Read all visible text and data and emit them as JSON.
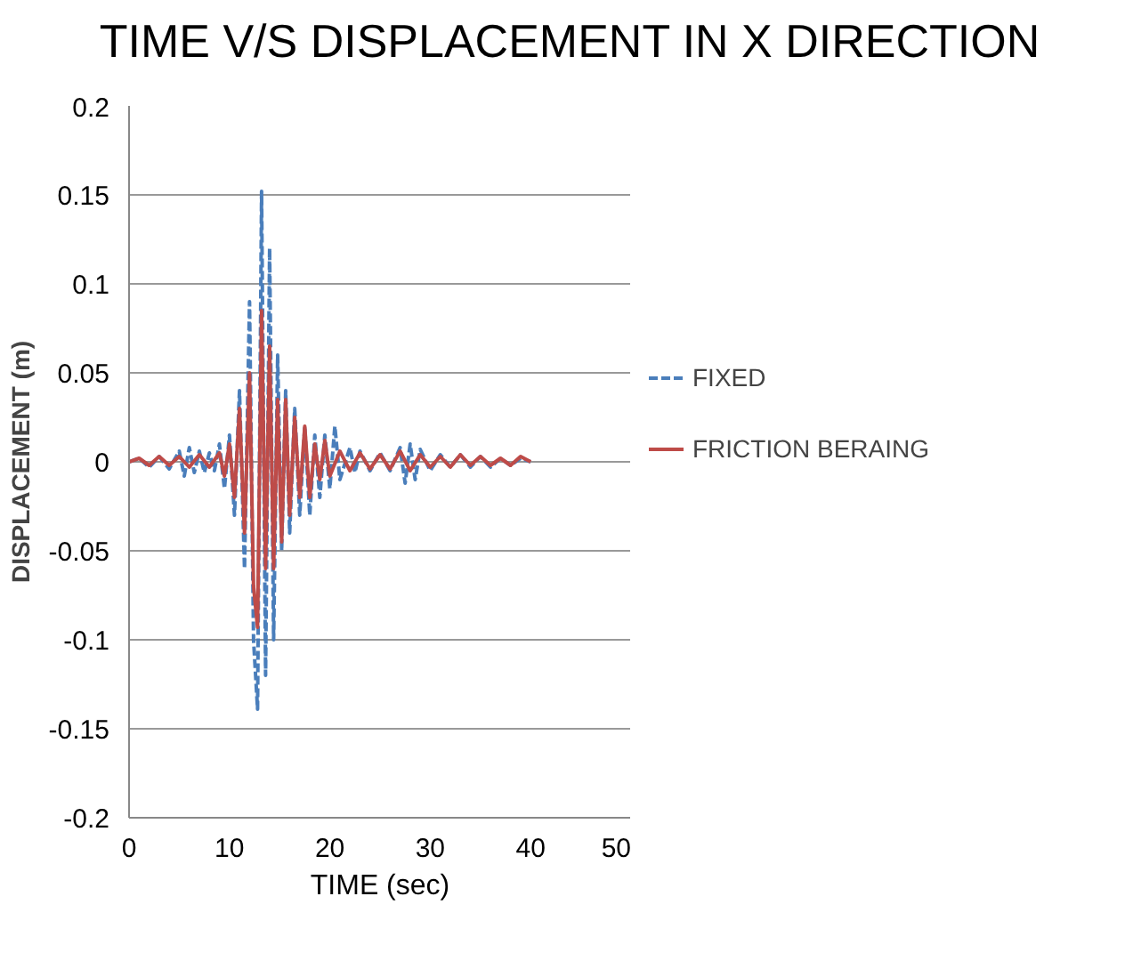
{
  "chart_data": {
    "type": "line",
    "title": "TIME V/S DISPLACEMENT IN X DIRECTION",
    "xlabel": "TIME (sec)",
    "ylabel": "DISPLACEMENT (m)",
    "xlim": [
      0,
      50
    ],
    "xticks": [
      0,
      10,
      20,
      30,
      40,
      50
    ],
    "ylim": [
      -0.2,
      0.2
    ],
    "yticks": [
      -0.2,
      -0.15,
      -0.1,
      -0.05,
      0,
      0.05,
      0.1,
      0.15,
      0.2
    ],
    "grid": "y",
    "legend": "right",
    "series": [
      {
        "name": "FIXED",
        "color": "#4a7ebb",
        "line_style": "dashed",
        "x": [
          0,
          1,
          2,
          3,
          4,
          5,
          5.5,
          6,
          6.5,
          7,
          7.5,
          8,
          8.5,
          9,
          9.5,
          10,
          10.5,
          11,
          11.5,
          12,
          12.4,
          12.8,
          13.2,
          13.6,
          14,
          14.4,
          14.8,
          15.2,
          15.6,
          16,
          16.5,
          17,
          17.5,
          18,
          18.5,
          19,
          19.5,
          20,
          20.5,
          21,
          22,
          22.5,
          23,
          24,
          25,
          26,
          27,
          27.5,
          28,
          28.5,
          29,
          30,
          31,
          32,
          33,
          34,
          35,
          36,
          37,
          38,
          39,
          40
        ],
        "values": [
          0,
          0.002,
          -0.003,
          0.003,
          -0.004,
          0.006,
          -0.008,
          0.008,
          -0.006,
          0.006,
          -0.006,
          0.005,
          -0.005,
          0.01,
          -0.015,
          0.015,
          -0.03,
          0.04,
          -0.06,
          0.09,
          -0.1,
          -0.139,
          0.152,
          -0.12,
          0.12,
          -0.1,
          0.06,
          -0.05,
          0.04,
          -0.04,
          0.03,
          -0.03,
          0.02,
          -0.03,
          0.015,
          -0.02,
          0.015,
          -0.015,
          0.02,
          -0.01,
          0.008,
          -0.006,
          0.006,
          -0.005,
          0.005,
          -0.005,
          0.008,
          -0.012,
          0.01,
          -0.01,
          0.007,
          -0.005,
          0.004,
          -0.003,
          0.004,
          -0.003,
          0.003,
          -0.003,
          0.002,
          -0.002,
          0.002,
          0
        ]
      },
      {
        "name": "FRICTION BERAING",
        "color": "#be4b48",
        "line_style": "solid",
        "x": [
          0,
          1,
          2,
          3,
          4,
          5,
          6,
          7,
          8,
          9,
          9.5,
          10,
          10.5,
          11,
          11.5,
          12,
          12.4,
          12.8,
          13.2,
          13.6,
          14,
          14.4,
          14.8,
          15.2,
          15.6,
          16,
          16.5,
          17,
          17.5,
          18,
          18.5,
          19,
          19.5,
          20,
          21,
          22,
          23,
          24,
          25,
          26,
          27,
          28,
          29,
          30,
          31,
          32,
          33,
          34,
          35,
          36,
          37,
          38,
          39,
          40
        ],
        "values": [
          0,
          0.002,
          -0.002,
          0.003,
          -0.002,
          0.003,
          -0.003,
          0.004,
          -0.003,
          0.005,
          -0.008,
          0.01,
          -0.02,
          0.03,
          -0.04,
          0.05,
          -0.07,
          -0.093,
          0.085,
          -0.06,
          0.065,
          -0.06,
          0.035,
          -0.045,
          0.035,
          -0.03,
          0.025,
          -0.02,
          0.02,
          -0.02,
          0.01,
          -0.01,
          0.012,
          -0.008,
          0.006,
          -0.005,
          0.005,
          -0.004,
          0.004,
          -0.004,
          0.006,
          -0.005,
          0.004,
          -0.003,
          0.003,
          -0.003,
          0.004,
          -0.002,
          0.003,
          -0.002,
          0.002,
          -0.002,
          0.003,
          0
        ]
      }
    ]
  }
}
